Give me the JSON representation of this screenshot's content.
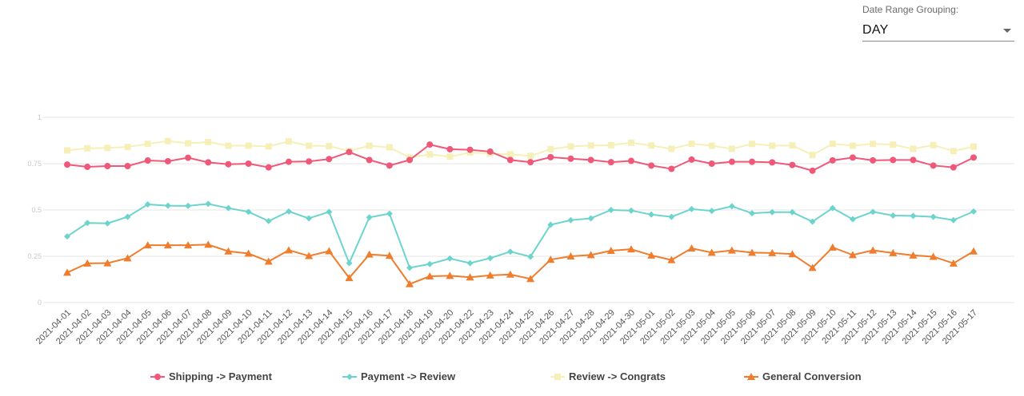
{
  "controls": {
    "grouping_label": "Date Range Grouping:",
    "grouping_value": "DAY"
  },
  "chart_data": {
    "type": "line",
    "title": "",
    "xlabel": "",
    "ylabel": "",
    "ylim": [
      0,
      1
    ],
    "ytick_values": [
      0,
      0.25,
      0.5,
      0.75,
      1.0
    ],
    "grid": "horizontal",
    "legend_position": "bottom",
    "categories": [
      "2021-04-01",
      "2021-04-02",
      "2021-04-03",
      "2021-04-04",
      "2021-04-05",
      "2021-04-06",
      "2021-04-07",
      "2021-04-08",
      "2021-04-09",
      "2021-04-10",
      "2021-04-11",
      "2021-04-12",
      "2021-04-13",
      "2021-04-14",
      "2021-04-15",
      "2021-04-16",
      "2021-04-17",
      "2021-04-18",
      "2021-04-19",
      "2021-04-20",
      "2021-04-22",
      "2021-04-23",
      "2021-04-24",
      "2021-04-25",
      "2021-04-26",
      "2021-04-27",
      "2021-04-28",
      "2021-04-29",
      "2021-04-30",
      "2021-05-01",
      "2021-05-02",
      "2021-05-03",
      "2021-05-04",
      "2021-05-05",
      "2021-05-06",
      "2021-05-07",
      "2021-05-08",
      "2021-05-09",
      "2021-05-10",
      "2021-05-11",
      "2021-05-12",
      "2021-05-13",
      "2021-05-14",
      "2021-05-15",
      "2021-05-16",
      "2021-05-17"
    ],
    "series": [
      {
        "name": "Shipping -> Payment",
        "color": "#f0587a",
        "marker": "circle",
        "values": [
          0.745,
          0.733,
          0.737,
          0.737,
          0.767,
          0.763,
          0.782,
          0.757,
          0.747,
          0.75,
          0.73,
          0.76,
          0.762,
          0.775,
          0.813,
          0.77,
          0.74,
          0.77,
          0.853,
          0.828,
          0.825,
          0.815,
          0.77,
          0.758,
          0.785,
          0.777,
          0.77,
          0.758,
          0.765,
          0.74,
          0.722,
          0.772,
          0.75,
          0.76,
          0.76,
          0.757,
          0.743,
          0.712,
          0.768,
          0.783,
          0.768,
          0.77,
          0.77,
          0.74,
          0.73,
          0.783
        ]
      },
      {
        "name": "Payment -> Review",
        "color": "#6dd4cd",
        "marker": "diamond",
        "values": [
          0.357,
          0.43,
          0.428,
          0.463,
          0.53,
          0.523,
          0.522,
          0.533,
          0.51,
          0.49,
          0.44,
          0.492,
          0.455,
          0.49,
          0.213,
          0.46,
          0.48,
          0.188,
          0.208,
          0.238,
          0.213,
          0.24,
          0.275,
          0.248,
          0.42,
          0.445,
          0.455,
          0.5,
          0.497,
          0.475,
          0.463,
          0.505,
          0.495,
          0.52,
          0.482,
          0.488,
          0.488,
          0.437,
          0.51,
          0.45,
          0.49,
          0.47,
          0.468,
          0.463,
          0.445,
          0.492
        ]
      },
      {
        "name": "Review -> Congrats",
        "color": "#f6f0b8",
        "marker": "square",
        "values": [
          0.822,
          0.833,
          0.835,
          0.84,
          0.857,
          0.872,
          0.86,
          0.867,
          0.847,
          0.847,
          0.843,
          0.87,
          0.847,
          0.845,
          0.818,
          0.847,
          0.838,
          0.783,
          0.8,
          0.788,
          0.81,
          0.805,
          0.8,
          0.792,
          0.828,
          0.843,
          0.848,
          0.85,
          0.863,
          0.848,
          0.83,
          0.857,
          0.847,
          0.83,
          0.857,
          0.847,
          0.848,
          0.797,
          0.857,
          0.847,
          0.857,
          0.853,
          0.83,
          0.85,
          0.818,
          0.842
        ]
      },
      {
        "name": "General Conversion",
        "color": "#ef7d2d",
        "marker": "triangle",
        "values": [
          0.162,
          0.212,
          0.213,
          0.24,
          0.31,
          0.31,
          0.31,
          0.313,
          0.277,
          0.265,
          0.222,
          0.283,
          0.252,
          0.278,
          0.133,
          0.26,
          0.253,
          0.1,
          0.142,
          0.145,
          0.137,
          0.147,
          0.152,
          0.128,
          0.232,
          0.25,
          0.257,
          0.28,
          0.288,
          0.255,
          0.23,
          0.293,
          0.27,
          0.282,
          0.27,
          0.268,
          0.262,
          0.188,
          0.298,
          0.257,
          0.282,
          0.268,
          0.255,
          0.248,
          0.212,
          0.277
        ]
      }
    ]
  }
}
